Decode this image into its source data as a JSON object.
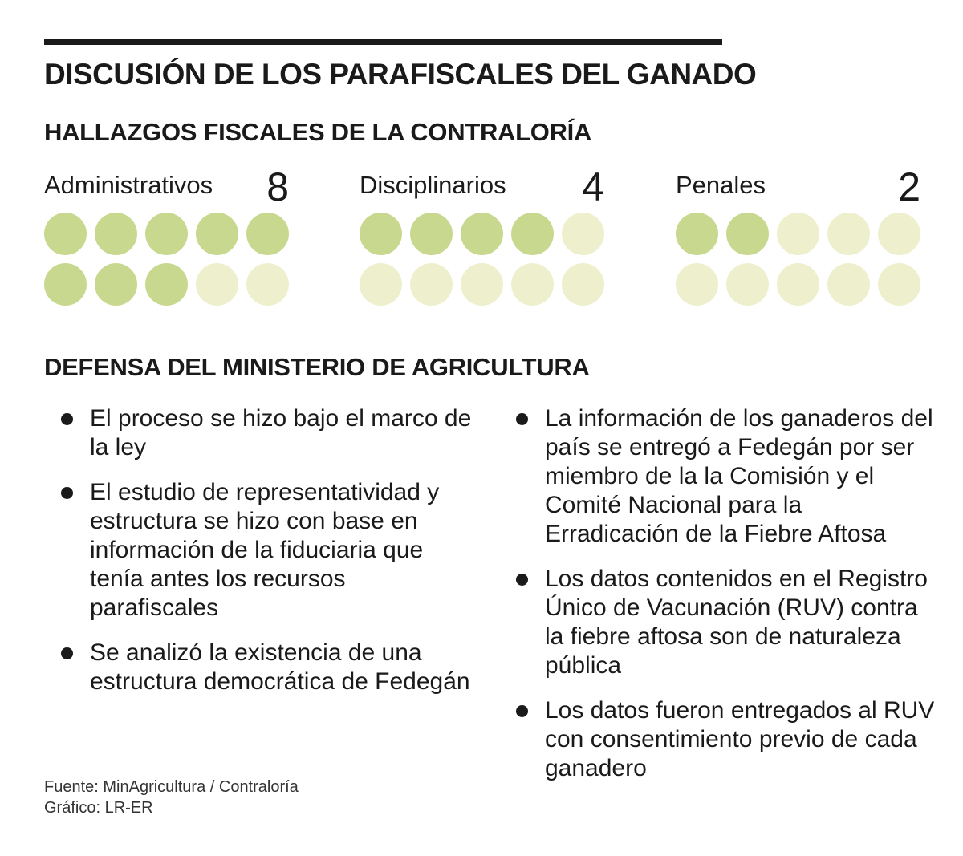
{
  "title": "DISCUSIÓN DE LOS PARAFISCALES DEL GANADO",
  "section1_title": "HALLAZGOS FISCALES DE LA CONTRALORÍA",
  "section2_title": "DEFENSA DEL MINISTERIO DE AGRICULTURA",
  "colors": {
    "filled": "#c8d98f",
    "empty": "#eef0cd",
    "text": "#1a1a1a",
    "rule": "#1a1a1a"
  },
  "chart_data": {
    "type": "pictograph",
    "total_per_group": 10,
    "categories": [
      "Administrativos",
      "Disciplinarios",
      "Penales"
    ],
    "values": [
      8,
      4,
      2
    ]
  },
  "groups": [
    {
      "label": "Administrativos",
      "count": "8"
    },
    {
      "label": "Disciplinarios",
      "count": "4"
    },
    {
      "label": "Penales",
      "count": "2"
    }
  ],
  "bullets_left": [
    "El proceso se hizo bajo el marco de la ley",
    "El estudio de representatividad y estructura se hizo con base en información de la fiduciaria que tenía antes los recursos parafiscales",
    "Se analizó la existencia de una estructura democrática de Fedegán"
  ],
  "bullets_right": [
    "La información de los ganaderos del país se entregó a Fedegán por ser miembro de la la Comisión y el Comité Nacional para la Erradicación de la Fiebre Aftosa",
    "Los datos contenidos en el Registro Único de Vacunación (RUV) contra la fiebre aftosa son de naturaleza pública",
    "Los datos fueron entregados al RUV con consentimiento previo de cada ganadero"
  ],
  "source": "Fuente: MinAgricultura / Contraloría",
  "credit": "Gráfico: LR-ER"
}
